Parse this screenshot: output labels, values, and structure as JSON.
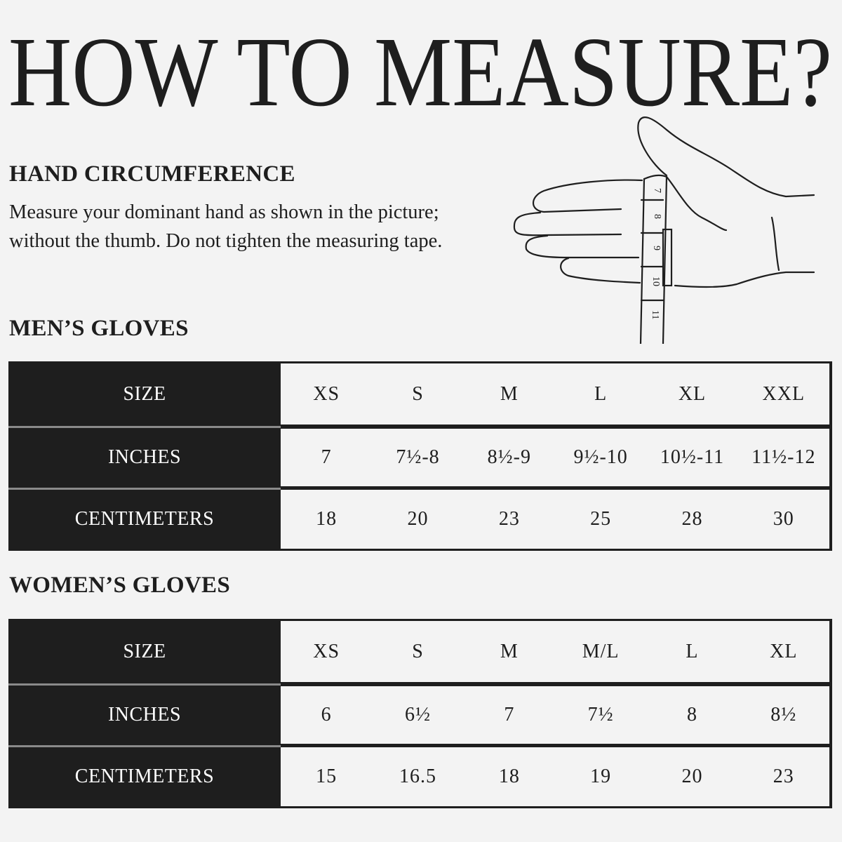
{
  "title": "HOW TO MEASURE?",
  "hand_section": {
    "heading": "HAND CIRCUMFERENCE",
    "text": "Measure your dominant hand as shown in the picture; without the thumb. Do not tighten the measuring tape.",
    "illustration": {
      "icon": "hand-with-measuring-tape",
      "tape_marks": [
        "7",
        "8",
        "9",
        "10",
        "11"
      ]
    }
  },
  "mens": {
    "heading": "MEN’S GLOVES",
    "rows": [
      {
        "label": "SIZE",
        "values": [
          "XS",
          "S",
          "M",
          "L",
          "XL",
          "XXL"
        ]
      },
      {
        "label": "INCHES",
        "values": [
          "7",
          "7½-8",
          "8½-9",
          "9½-10",
          "10½-11",
          "11½-12"
        ]
      },
      {
        "label": "CENTIMETERS",
        "values": [
          "18",
          "20",
          "23",
          "25",
          "28",
          "30"
        ]
      }
    ]
  },
  "womens": {
    "heading": "WOMEN’S GLOVES",
    "rows": [
      {
        "label": "SIZE",
        "values": [
          "XS",
          "S",
          "M",
          "M/L",
          "L",
          "XL"
        ]
      },
      {
        "label": "INCHES",
        "values": [
          "6",
          "6½",
          "7",
          "7½",
          "8",
          "8½"
        ]
      },
      {
        "label": "CENTIMETERS",
        "values": [
          "15",
          "16.5",
          "18",
          "19",
          "20",
          "23"
        ]
      }
    ]
  },
  "colors": {
    "background": "#f3f3f3",
    "ink": "#1e1e1e"
  }
}
